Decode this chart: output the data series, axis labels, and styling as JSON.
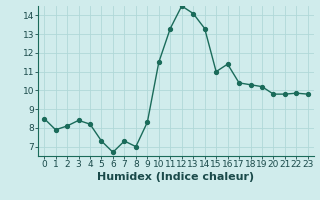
{
  "x": [
    0,
    1,
    2,
    3,
    4,
    5,
    6,
    7,
    8,
    9,
    10,
    11,
    12,
    13,
    14,
    15,
    16,
    17,
    18,
    19,
    20,
    21,
    22,
    23
  ],
  "y": [
    8.5,
    7.9,
    8.1,
    8.4,
    8.2,
    7.3,
    6.7,
    7.3,
    7.0,
    8.3,
    11.5,
    13.3,
    14.5,
    14.1,
    13.3,
    11.0,
    11.4,
    10.4,
    10.3,
    10.2,
    9.8,
    9.8,
    9.85,
    9.8
  ],
  "line_color": "#1a6b5a",
  "marker_color": "#1a6b5a",
  "bg_color": "#d0ecec",
  "grid_color": "#b0d8d8",
  "xlabel": "Humidex (Indice chaleur)",
  "xlim": [
    -0.5,
    23.5
  ],
  "ylim": [
    6.5,
    14.5
  ],
  "yticks": [
    7,
    8,
    9,
    10,
    11,
    12,
    13,
    14
  ],
  "xticks": [
    0,
    1,
    2,
    3,
    4,
    5,
    6,
    7,
    8,
    9,
    10,
    11,
    12,
    13,
    14,
    15,
    16,
    17,
    18,
    19,
    20,
    21,
    22,
    23
  ],
  "tick_fontsize": 6.5,
  "xlabel_fontsize": 8,
  "linewidth": 1.0,
  "markersize": 2.8
}
